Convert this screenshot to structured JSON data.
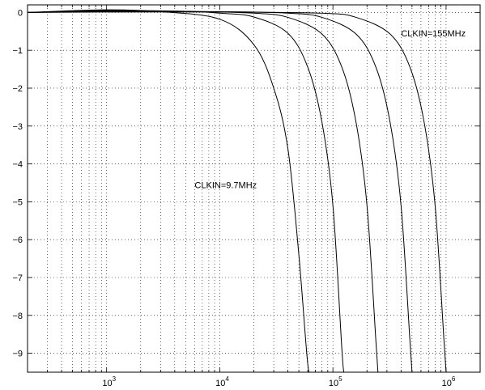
{
  "chart_data": {
    "type": "line",
    "title": "",
    "xlabel": "",
    "ylabel": "",
    "xscale": "log",
    "xlim": [
      200,
      2000000
    ],
    "ylim": [
      -9.5,
      0.2
    ],
    "grid": true,
    "x_ticks": [
      {
        "base": "10",
        "exp": "3",
        "value": 1000
      },
      {
        "base": "10",
        "exp": "4",
        "value": 10000
      },
      {
        "base": "10",
        "exp": "5",
        "value": 100000
      },
      {
        "base": "10",
        "exp": "6",
        "value": 1000000
      }
    ],
    "y_ticks": [
      {
        "label": "0",
        "value": 0
      },
      {
        "label": "−1",
        "value": -1
      },
      {
        "label": "−2",
        "value": -2
      },
      {
        "label": "−3",
        "value": -3
      },
      {
        "label": "−4",
        "value": -4
      },
      {
        "label": "−5",
        "value": -5
      },
      {
        "label": "−6",
        "value": -6
      },
      {
        "label": "−7",
        "value": -7
      },
      {
        "label": "−8",
        "value": -8
      },
      {
        "label": "−9",
        "value": -9
      }
    ],
    "series": [
      {
        "x": [
          200,
          1000,
          3000,
          10000,
          20000,
          30000,
          40000,
          50000,
          60000,
          65000
        ],
        "values": [
          0,
          0.07,
          0.02,
          -0.18,
          -0.85,
          -2.0,
          -3.6,
          -6.4,
          -9.3,
          -9.5
        ]
      },
      {
        "x": [
          200,
          1000,
          5000,
          10000,
          20000,
          40000,
          60000,
          80000,
          100000,
          120000,
          125000
        ],
        "values": [
          0,
          0.05,
          0.03,
          -0.02,
          -0.12,
          -0.55,
          -1.45,
          -2.9,
          -5.1,
          -8.9,
          -9.5
        ]
      },
      {
        "x": [
          200,
          1000,
          5000,
          20000,
          40000,
          80000,
          120000,
          160000,
          200000,
          240000,
          250000
        ],
        "values": [
          0,
          0.03,
          0.03,
          -0.02,
          -0.13,
          -0.57,
          -1.45,
          -2.9,
          -5.1,
          -8.7,
          -9.5
        ]
      },
      {
        "x": [
          200,
          1000,
          10000,
          40000,
          80000,
          160000,
          240000,
          320000,
          400000,
          480000,
          500000
        ],
        "values": [
          0,
          0.02,
          0.02,
          -0.02,
          -0.13,
          -0.57,
          -1.45,
          -2.9,
          -5.1,
          -8.7,
          -9.5
        ]
      },
      {
        "x": [
          200,
          1000,
          10000,
          80000,
          160000,
          320000,
          480000,
          640000,
          800000,
          960000,
          1000000
        ],
        "values": [
          0,
          0.01,
          0.01,
          -0.02,
          -0.13,
          -0.57,
          -1.45,
          -2.9,
          -5.1,
          -8.7,
          -9.5
        ]
      }
    ],
    "annotations": [
      {
        "text": "CLKIN=155MHz",
        "x": 400000,
        "y": -0.55
      },
      {
        "text": "CLKIN=9.7MHz",
        "x": 6000,
        "y": -4.55
      }
    ]
  }
}
